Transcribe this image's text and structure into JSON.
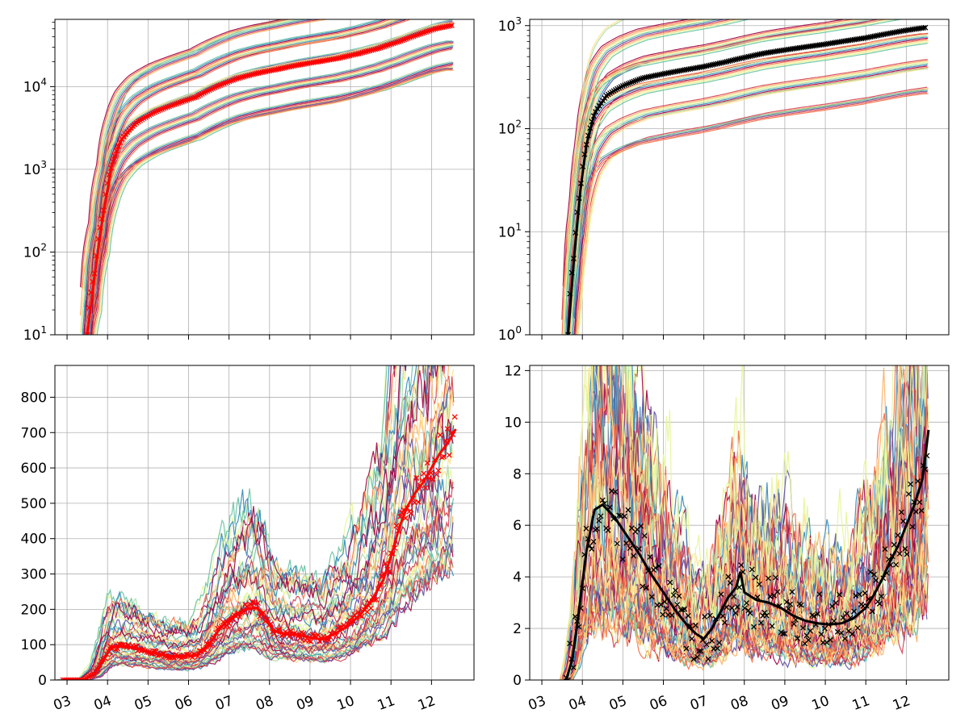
{
  "figure": {
    "palette": [
      "#9e0142",
      "#d53e4f",
      "#f46d43",
      "#fdae61",
      "#fee08b",
      "#e6f598",
      "#abdda4",
      "#66c2a5",
      "#3288bd",
      "#5e4fa2"
    ],
    "months": [
      "03",
      "04",
      "05",
      "06",
      "07",
      "08",
      "09",
      "10",
      "11",
      "12"
    ]
  },
  "chart_data": [
    {
      "type": "line",
      "panel": "top-left",
      "scale": "log",
      "ylim": [
        10,
        65000
      ],
      "ytick_values": [
        10,
        100,
        1000,
        10000
      ],
      "ytick_labels": [
        "10",
        "10",
        "10",
        "10"
      ],
      "ytick_exponents": [
        "1",
        "2",
        "3",
        "4"
      ],
      "xtick_labels": [],
      "grid": true,
      "highlight": {
        "color": "#ff0000",
        "marker": "x",
        "points": [
          [
            3.5,
            10
          ],
          [
            3.7,
            60
          ],
          [
            3.9,
            300
          ],
          [
            4.1,
            1100
          ],
          [
            4.35,
            2300
          ],
          [
            4.7,
            3600
          ],
          [
            5.2,
            5000
          ],
          [
            5.7,
            6200
          ],
          [
            6.2,
            7500
          ],
          [
            6.7,
            10000
          ],
          [
            7.2,
            12500
          ],
          [
            7.7,
            14500
          ],
          [
            8.2,
            16200
          ],
          [
            8.7,
            18200
          ],
          [
            9.2,
            20000
          ],
          [
            9.7,
            22000
          ],
          [
            10.2,
            25000
          ],
          [
            10.7,
            29000
          ],
          [
            11.2,
            35000
          ],
          [
            11.7,
            43000
          ],
          [
            12.1,
            50000
          ],
          [
            12.5,
            55000
          ]
        ]
      }
    },
    {
      "type": "line",
      "panel": "top-right",
      "scale": "log",
      "ylim": [
        1,
        1150
      ],
      "ytick_values": [
        1,
        10,
        100,
        1000
      ],
      "ytick_labels": [
        "10",
        "10",
        "10",
        "10"
      ],
      "ytick_exponents": [
        "0",
        "1",
        "2",
        "3"
      ],
      "xtick_labels": [],
      "grid": true,
      "highlight": {
        "color": "#000000",
        "marker": "x",
        "points": [
          [
            3.65,
            1
          ],
          [
            3.8,
            6
          ],
          [
            3.95,
            25
          ],
          [
            4.1,
            70
          ],
          [
            4.3,
            140
          ],
          [
            4.6,
            210
          ],
          [
            5.0,
            260
          ],
          [
            5.5,
            310
          ],
          [
            6.0,
            340
          ],
          [
            6.5,
            370
          ],
          [
            7.0,
            400
          ],
          [
            7.5,
            440
          ],
          [
            8.0,
            490
          ],
          [
            8.5,
            540
          ],
          [
            9.0,
            580
          ],
          [
            9.5,
            620
          ],
          [
            10.0,
            660
          ],
          [
            10.5,
            710
          ],
          [
            11.0,
            760
          ],
          [
            11.5,
            830
          ],
          [
            12.0,
            900
          ],
          [
            12.5,
            960
          ]
        ]
      }
    },
    {
      "type": "line",
      "panel": "bottom-left",
      "scale": "linear",
      "ylim": [
        0,
        890
      ],
      "ytick_values": [
        0,
        100,
        200,
        300,
        400,
        500,
        600,
        700,
        800
      ],
      "ytick_labels": [
        "0",
        "100",
        "200",
        "300",
        "400",
        "500",
        "600",
        "700",
        "800"
      ],
      "xtick_labels": [
        "03",
        "04",
        "05",
        "06",
        "07",
        "08",
        "09",
        "10",
        "11",
        "12"
      ],
      "grid": true,
      "highlight": {
        "color": "#ff0000",
        "marker": "x",
        "points": [
          [
            2.9,
            0
          ],
          [
            3.4,
            0
          ],
          [
            3.7,
            20
          ],
          [
            3.9,
            60
          ],
          [
            4.1,
            95
          ],
          [
            4.4,
            95
          ],
          [
            4.7,
            90
          ],
          [
            5.0,
            80
          ],
          [
            5.3,
            72
          ],
          [
            5.6,
            68
          ],
          [
            5.9,
            68
          ],
          [
            6.2,
            70
          ],
          [
            6.5,
            100
          ],
          [
            6.8,
            150
          ],
          [
            7.1,
            180
          ],
          [
            7.4,
            200
          ],
          [
            7.7,
            205
          ],
          [
            7.9,
            175
          ],
          [
            8.1,
            140
          ],
          [
            8.4,
            130
          ],
          [
            8.7,
            128
          ],
          [
            9.0,
            120
          ],
          [
            9.3,
            115
          ],
          [
            9.6,
            130
          ],
          [
            9.9,
            150
          ],
          [
            10.2,
            180
          ],
          [
            10.5,
            220
          ],
          [
            10.8,
            280
          ],
          [
            11.0,
            350
          ],
          [
            11.2,
            430
          ],
          [
            11.4,
            490
          ],
          [
            11.6,
            530
          ],
          [
            11.8,
            560
          ],
          [
            12.0,
            600
          ],
          [
            12.2,
            640
          ],
          [
            12.4,
            670
          ],
          [
            12.6,
            710
          ]
        ]
      }
    },
    {
      "type": "line",
      "panel": "bottom-right",
      "scale": "linear",
      "ylim": [
        0,
        12.2
      ],
      "ytick_values": [
        0,
        2,
        4,
        6,
        8,
        10,
        12
      ],
      "ytick_labels": [
        "0",
        "2",
        "4",
        "6",
        "8",
        "10",
        "12"
      ],
      "xtick_labels": [
        "03",
        "04",
        "05",
        "06",
        "07",
        "08",
        "09",
        "10",
        "11",
        "12"
      ],
      "grid": true,
      "highlight": {
        "color": "#000000",
        "marker": "x",
        "points": [
          [
            3.6,
            0
          ],
          [
            3.75,
            0.8
          ],
          [
            3.9,
            2.5
          ],
          [
            4.1,
            5.0
          ],
          [
            4.3,
            6.6
          ],
          [
            4.5,
            6.8
          ],
          [
            4.8,
            6.3
          ],
          [
            5.1,
            5.6
          ],
          [
            5.4,
            4.9
          ],
          [
            5.7,
            4.1
          ],
          [
            6.0,
            3.4
          ],
          [
            6.3,
            2.7
          ],
          [
            6.6,
            2.1
          ],
          [
            6.8,
            1.8
          ],
          [
            7.0,
            1.6
          ],
          [
            7.2,
            2.0
          ],
          [
            7.4,
            2.6
          ],
          [
            7.6,
            3.2
          ],
          [
            7.8,
            3.6
          ],
          [
            7.9,
            4.2
          ],
          [
            8.0,
            3.4
          ],
          [
            8.3,
            3.1
          ],
          [
            8.6,
            3.0
          ],
          [
            8.9,
            2.8
          ],
          [
            9.2,
            2.5
          ],
          [
            9.5,
            2.3
          ],
          [
            9.8,
            2.2
          ],
          [
            10.1,
            2.15
          ],
          [
            10.4,
            2.2
          ],
          [
            10.7,
            2.4
          ],
          [
            11.0,
            2.8
          ],
          [
            11.2,
            3.3
          ],
          [
            11.4,
            3.9
          ],
          [
            11.6,
            4.6
          ],
          [
            11.8,
            5.2
          ],
          [
            12.0,
            6.0
          ],
          [
            12.2,
            6.8
          ],
          [
            12.4,
            7.8
          ],
          [
            12.55,
            9.7
          ]
        ]
      }
    }
  ]
}
